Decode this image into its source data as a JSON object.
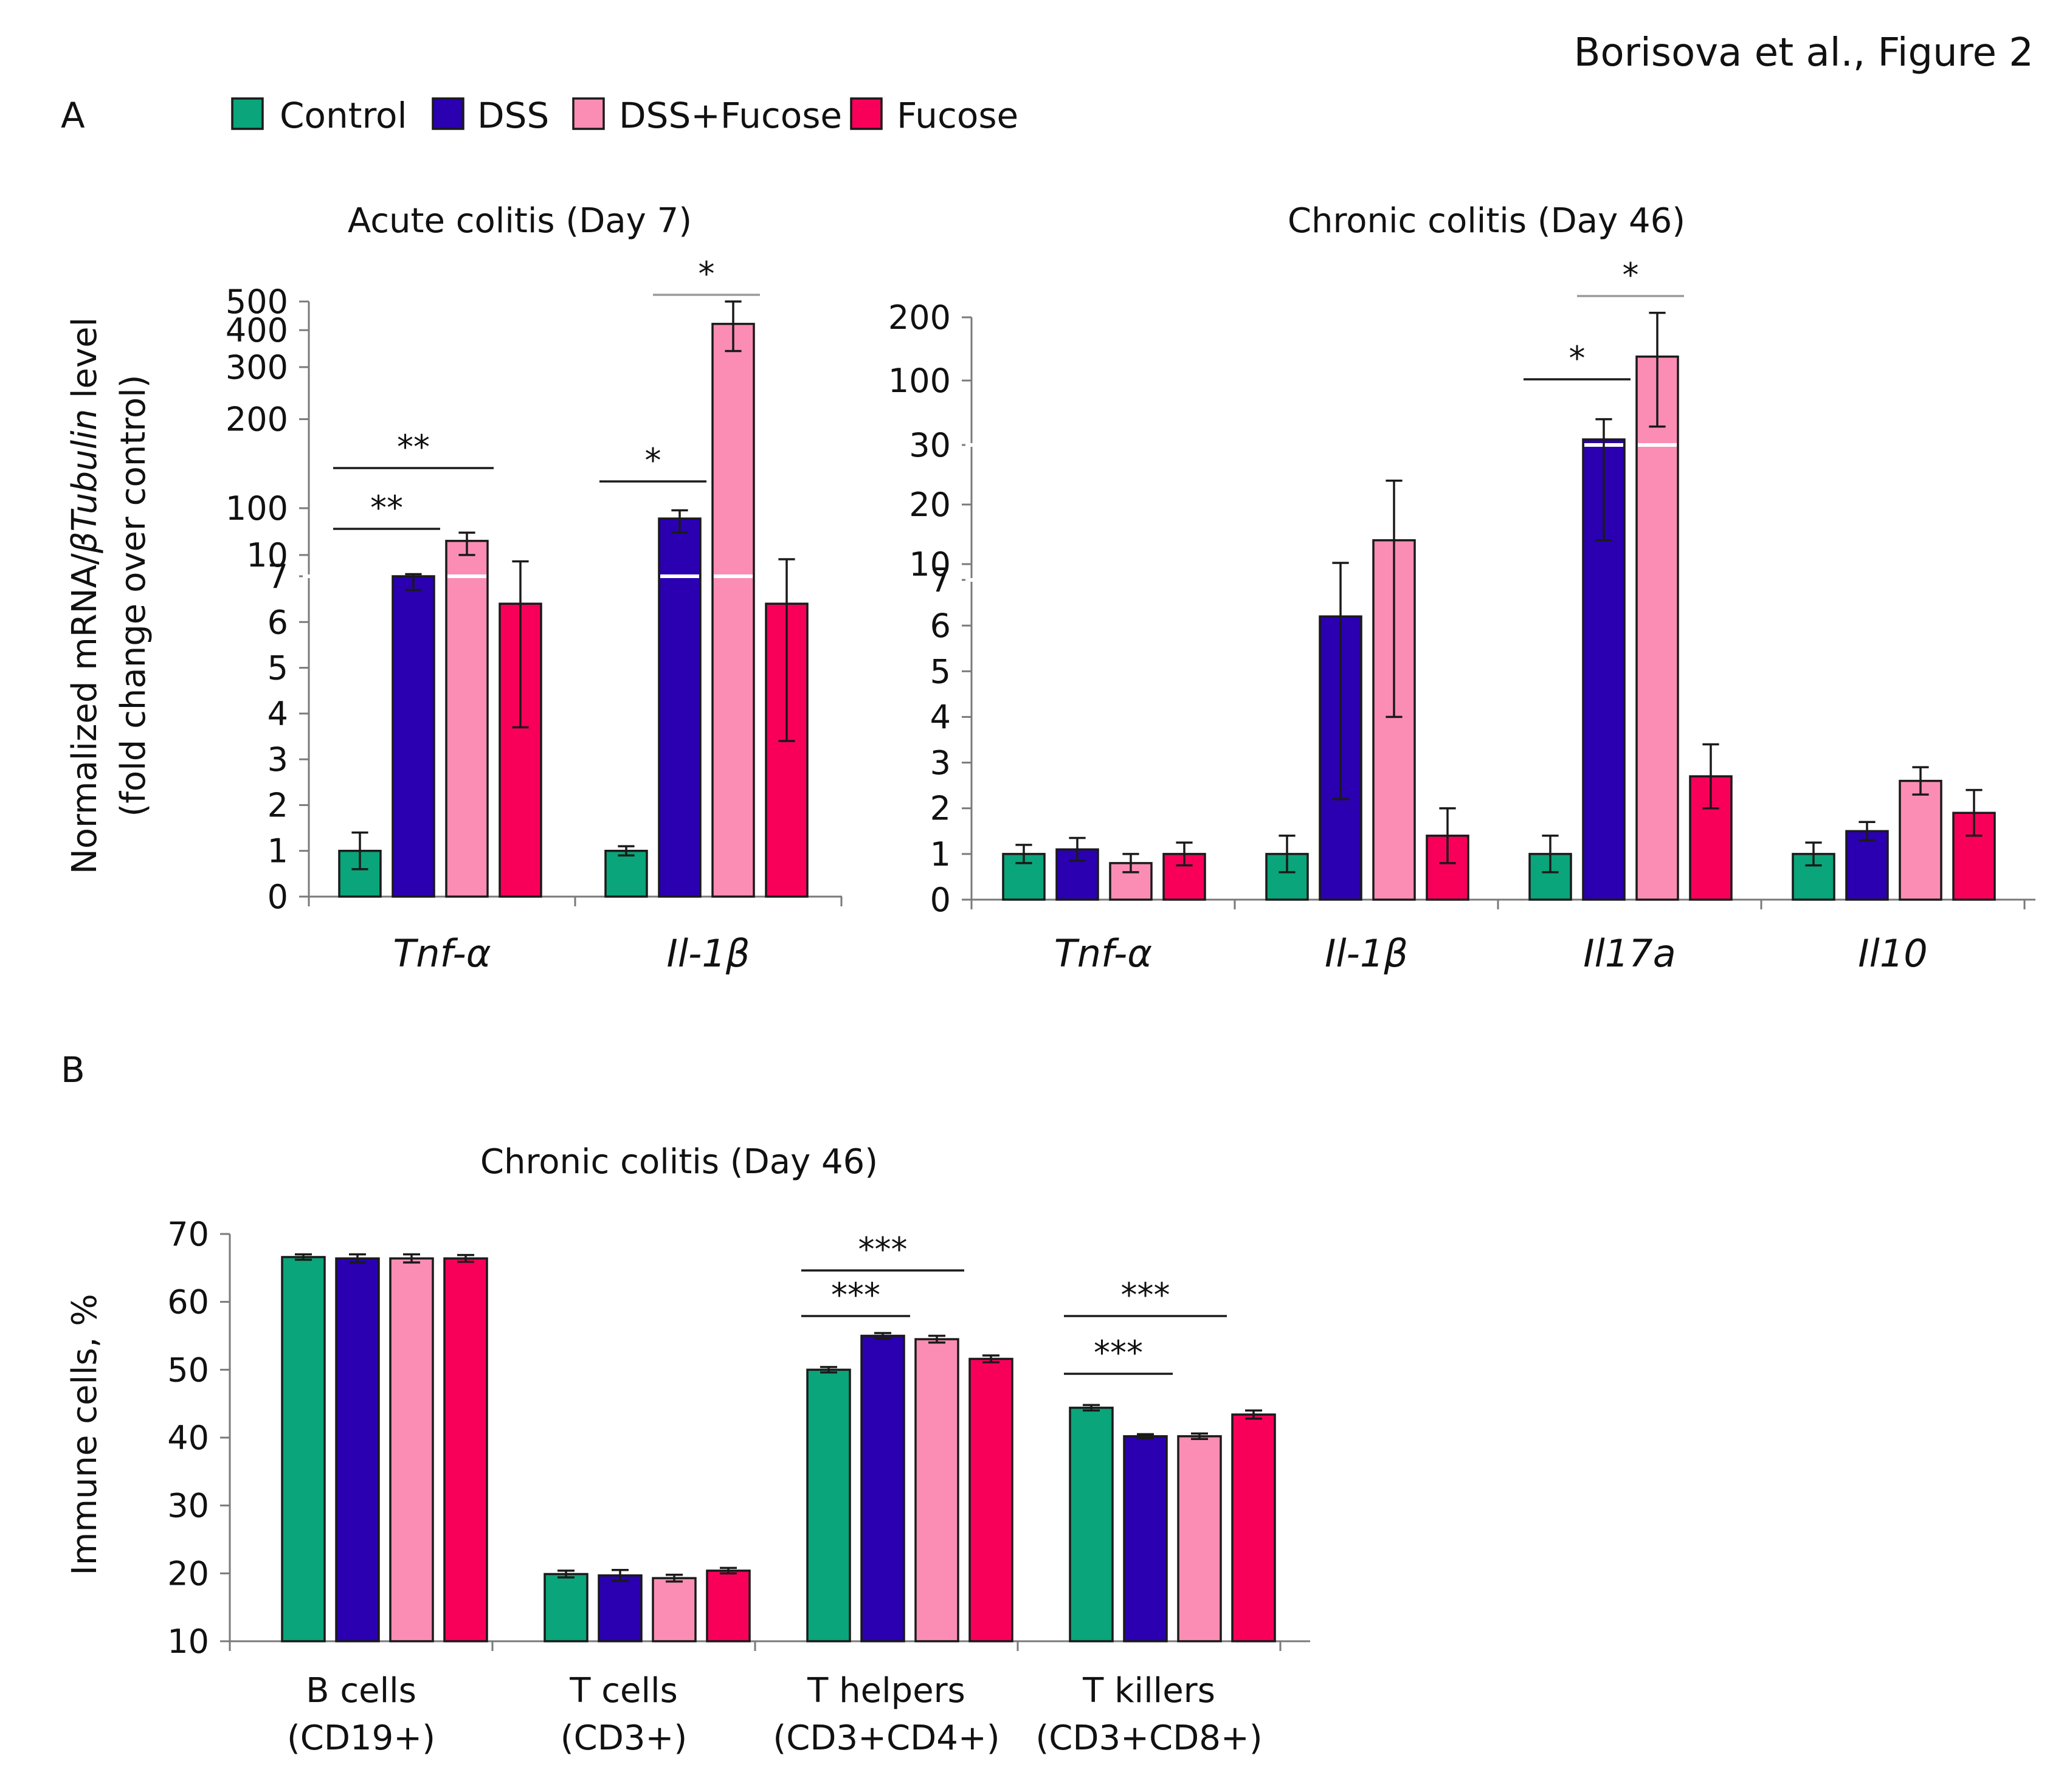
{
  "figure_label": "Borisova et al., Figure 2",
  "panels": {
    "a": "A",
    "b": "B"
  },
  "colors": {
    "Control": "#0aa57a",
    "DSS": "#2a00b0",
    "DSS+Fucose": "#fb8db4",
    "Fucose": "#f8005a"
  },
  "legend": [
    "Control",
    "DSS",
    "DSS+Fucose",
    "Fucose"
  ],
  "panelA_ylabel": {
    "line1_pre": "Normalized mRNA/",
    "line1_italic": "βTubulin",
    "line1_post": " level",
    "line2": "(fold change over control)"
  },
  "panelB_ylabel": "Immune cells, %",
  "chart_data": [
    {
      "id": "acute",
      "type": "bar",
      "title": "Acute colitis (Day 7)",
      "categories": [
        "Tnf-α",
        "Il-1β"
      ],
      "series": [
        {
          "name": "Control",
          "values": [
            1.0,
            1.0
          ],
          "errors": [
            0.4,
            0.1
          ]
        },
        {
          "name": "DSS",
          "values": [
            7.0,
            60.0
          ],
          "errors": [
            0.3,
            30.0
          ]
        },
        {
          "name": "DSS+Fucose",
          "values": [
            20.0,
            420.0
          ],
          "errors": [
            10.0,
            80.0
          ]
        },
        {
          "name": "Fucose",
          "values": [
            6.4,
            6.4
          ],
          "errors": [
            2.7,
            3.0
          ]
        }
      ],
      "y_scale": "segmented: linear 0-7, log 10-500",
      "yticks": [
        "0",
        "1",
        "2",
        "3",
        "4",
        "5",
        "6",
        "7",
        "10",
        "100",
        "200",
        "300",
        "400",
        "500"
      ],
      "significance": [
        {
          "label": "**",
          "from": [
            "Tnf-α",
            "Control"
          ],
          "to": [
            "Tnf-α",
            "DSS"
          ]
        },
        {
          "label": "**",
          "from": [
            "Tnf-α",
            "Control"
          ],
          "to": [
            "Tnf-α",
            "DSS+Fucose"
          ]
        },
        {
          "label": "*",
          "from": [
            "Il-1β",
            "Control"
          ],
          "to": [
            "Il-1β",
            "DSS"
          ]
        },
        {
          "label": "*",
          "from": [
            "Il-1β",
            "DSS"
          ],
          "to": [
            "Il-1β",
            "DSS+Fucose"
          ]
        }
      ]
    },
    {
      "id": "chronic",
      "type": "bar",
      "title": "Chronic colitis (Day 46)",
      "categories": [
        "Tnf-α",
        "Il-1β",
        "Il17a",
        "Il10"
      ],
      "series": [
        {
          "name": "Control",
          "values": [
            1.0,
            1.0,
            1.0,
            1.0
          ],
          "errors": [
            0.2,
            0.4,
            0.4,
            0.25
          ]
        },
        {
          "name": "DSS",
          "values": [
            1.1,
            6.2,
            36.0,
            1.5
          ],
          "errors": [
            0.25,
            4.0,
            22.0,
            0.2
          ]
        },
        {
          "name": "DSS+Fucose",
          "values": [
            0.8,
            14.0,
            130.0,
            2.6
          ],
          "errors": [
            0.2,
            10.0,
            80.0,
            0.3
          ]
        },
        {
          "name": "Fucose",
          "values": [
            1.0,
            1.4,
            2.7,
            1.9
          ],
          "errors": [
            0.25,
            0.6,
            0.7,
            0.5
          ]
        }
      ],
      "y_scale": "segmented: linear 0-7, 10-30, log 100-200",
      "yticks": [
        "0",
        "1",
        "2",
        "3",
        "4",
        "5",
        "6",
        "7",
        "10",
        "20",
        "30",
        "100",
        "200"
      ],
      "significance": [
        {
          "label": "*",
          "from": [
            "Il17a",
            "Control"
          ],
          "to": [
            "Il17a",
            "DSS"
          ]
        },
        {
          "label": "*",
          "from": [
            "Il17a",
            "DSS"
          ],
          "to": [
            "Il17a",
            "DSS+Fucose"
          ]
        }
      ]
    },
    {
      "id": "cells",
      "type": "bar",
      "title": "Chronic colitis (Day 46)",
      "ylabel": "Immune cells, %",
      "ylim": [
        10,
        70
      ],
      "yticks": [
        "10",
        "20",
        "30",
        "40",
        "50",
        "60",
        "70"
      ],
      "categories": [
        [
          "B cells",
          "(CD19+)"
        ],
        [
          "T cells",
          "(CD3+)"
        ],
        [
          "T helpers",
          "(CD3+CD4+)"
        ],
        [
          "T killers",
          "(CD3+CD8+)"
        ]
      ],
      "series": [
        {
          "name": "Control",
          "values": [
            66.6,
            19.9,
            50.0,
            44.4
          ],
          "errors": [
            0.4,
            0.5,
            0.4,
            0.4
          ]
        },
        {
          "name": "DSS",
          "values": [
            66.4,
            19.7,
            55.0,
            40.2
          ],
          "errors": [
            0.6,
            0.8,
            0.4,
            0.3
          ]
        },
        {
          "name": "DSS+Fucose",
          "values": [
            66.4,
            19.3,
            54.5,
            40.2
          ],
          "errors": [
            0.6,
            0.5,
            0.5,
            0.4
          ]
        },
        {
          "name": "Fucose",
          "values": [
            66.4,
            20.4,
            51.6,
            43.4
          ],
          "errors": [
            0.5,
            0.4,
            0.5,
            0.6
          ]
        }
      ],
      "significance": [
        {
          "label": "***",
          "from": [
            "T helpers",
            "Control"
          ],
          "to": [
            "T helpers",
            "DSS"
          ]
        },
        {
          "label": "***",
          "from": [
            "T helpers",
            "Control"
          ],
          "to": [
            "T helpers",
            "DSS+Fucose"
          ]
        },
        {
          "label": "***",
          "from": [
            "T killers",
            "Control"
          ],
          "to": [
            "T killers",
            "DSS"
          ]
        },
        {
          "label": "***",
          "from": [
            "T killers",
            "Control"
          ],
          "to": [
            "T killers",
            "DSS+Fucose"
          ]
        }
      ]
    }
  ]
}
